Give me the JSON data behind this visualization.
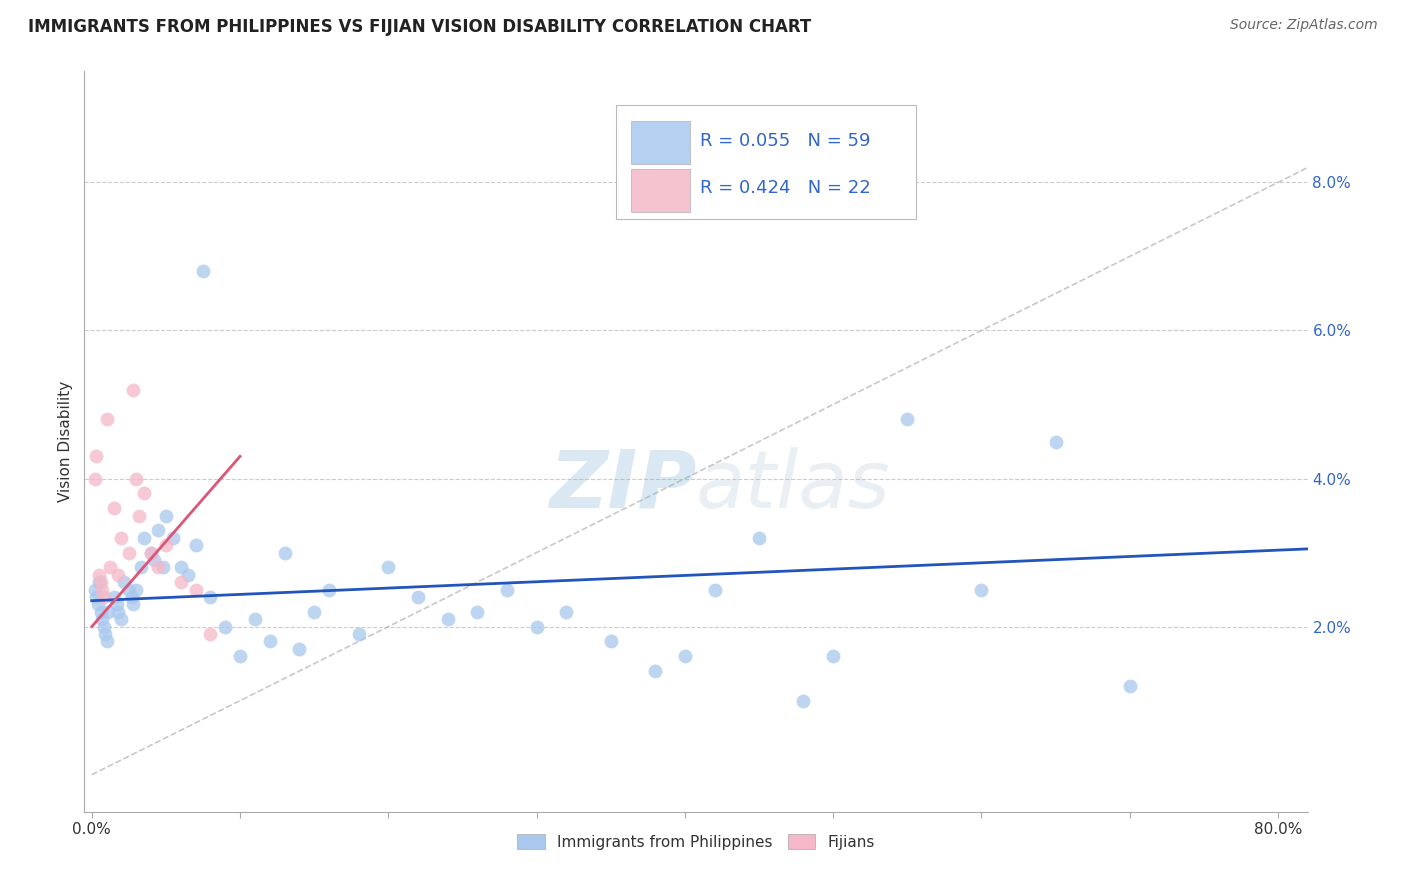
{
  "title": "IMMIGRANTS FROM PHILIPPINES VS FIJIAN VISION DISABILITY CORRELATION CHART",
  "source": "Source: ZipAtlas.com",
  "ylabel": "Vision Disability",
  "xlim": [
    -0.005,
    0.82
  ],
  "ylim": [
    -0.005,
    0.095
  ],
  "xtick_positions": [
    0.0,
    0.1,
    0.2,
    0.3,
    0.4,
    0.5,
    0.6,
    0.7,
    0.8
  ],
  "xtick_labels": [
    "0.0%",
    "",
    "",
    "",
    "",
    "",
    "",
    "",
    "80.0%"
  ],
  "yticks_right": [
    0.02,
    0.04,
    0.06,
    0.08
  ],
  "ytick_labels_right": [
    "2.0%",
    "4.0%",
    "6.0%",
    "8.0%"
  ],
  "blue_R": 0.055,
  "blue_N": 59,
  "pink_R": 0.424,
  "pink_N": 22,
  "blue_color": "#A8C8EE",
  "pink_color": "#F4B8C8",
  "blue_line_color": "#2255BB",
  "pink_line_color": "#DD5577",
  "diag_line_color": "#BBBBBB",
  "background_color": "#FFFFFF",
  "grid_color": "#CCCCCC",
  "watermark_color": "#C8D8EE",
  "blue_x": [
    0.002,
    0.003,
    0.004,
    0.005,
    0.006,
    0.007,
    0.008,
    0.009,
    0.01,
    0.011,
    0.015,
    0.017,
    0.018,
    0.02,
    0.022,
    0.025,
    0.027,
    0.028,
    0.03,
    0.033,
    0.035,
    0.04,
    0.042,
    0.045,
    0.048,
    0.05,
    0.055,
    0.06,
    0.065,
    0.07,
    0.075,
    0.08,
    0.09,
    0.1,
    0.11,
    0.12,
    0.13,
    0.14,
    0.15,
    0.16,
    0.18,
    0.2,
    0.22,
    0.24,
    0.26,
    0.28,
    0.3,
    0.32,
    0.35,
    0.38,
    0.4,
    0.42,
    0.45,
    0.48,
    0.5,
    0.55,
    0.6,
    0.65,
    0.7
  ],
  "blue_y": [
    0.025,
    0.024,
    0.023,
    0.026,
    0.022,
    0.021,
    0.02,
    0.019,
    0.018,
    0.022,
    0.024,
    0.023,
    0.022,
    0.021,
    0.026,
    0.025,
    0.024,
    0.023,
    0.025,
    0.028,
    0.032,
    0.03,
    0.029,
    0.033,
    0.028,
    0.035,
    0.032,
    0.028,
    0.027,
    0.031,
    0.068,
    0.024,
    0.02,
    0.016,
    0.021,
    0.018,
    0.03,
    0.017,
    0.022,
    0.025,
    0.019,
    0.028,
    0.024,
    0.021,
    0.022,
    0.025,
    0.02,
    0.022,
    0.018,
    0.014,
    0.016,
    0.025,
    0.032,
    0.01,
    0.016,
    0.048,
    0.025,
    0.045,
    0.012
  ],
  "pink_x": [
    0.002,
    0.003,
    0.005,
    0.006,
    0.007,
    0.008,
    0.01,
    0.012,
    0.015,
    0.018,
    0.02,
    0.025,
    0.028,
    0.03,
    0.032,
    0.035,
    0.04,
    0.045,
    0.05,
    0.06,
    0.07,
    0.08
  ],
  "pink_y": [
    0.04,
    0.043,
    0.027,
    0.026,
    0.025,
    0.024,
    0.048,
    0.028,
    0.036,
    0.027,
    0.032,
    0.03,
    0.052,
    0.04,
    0.035,
    0.038,
    0.03,
    0.028,
    0.031,
    0.026,
    0.025,
    0.019
  ],
  "blue_trendline_x": [
    0.0,
    0.82
  ],
  "blue_trendline_y": [
    0.0235,
    0.0305
  ],
  "pink_trendline_x": [
    0.0,
    0.1
  ],
  "pink_trendline_y": [
    0.02,
    0.043
  ],
  "diag_line_x": [
    0.0,
    0.82
  ],
  "diag_line_y": [
    0.0,
    0.082
  ]
}
